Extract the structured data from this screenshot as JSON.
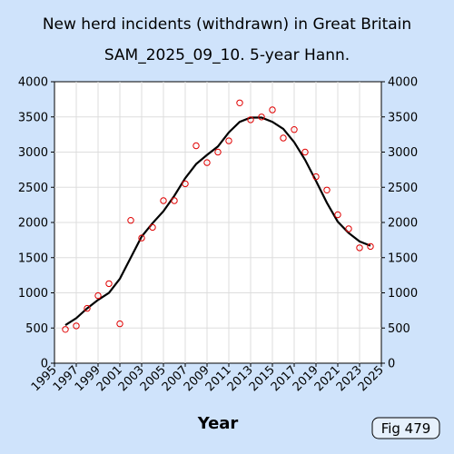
{
  "chart_data": {
    "type": "scatter",
    "title": "New herd incidents (withdrawn) in Great Britain",
    "subtitle": "SAM_2025_09_10. 5-year Hann.",
    "xlabel": "Year",
    "ylabel": "",
    "xlim": [
      1995,
      2025
    ],
    "ylim": [
      0,
      4000
    ],
    "x_ticks": [
      "1995",
      "1997",
      "1999",
      "2001",
      "2003",
      "2005",
      "2007",
      "2009",
      "2011",
      "2013",
      "2015",
      "2017",
      "2019",
      "2021",
      "2023",
      "2025"
    ],
    "y_ticks": [
      "0",
      "500",
      "1000",
      "1500",
      "2000",
      "2500",
      "3000",
      "3500",
      "4000"
    ],
    "grid": true,
    "series": [
      {
        "kind": "points",
        "color": "#e00000",
        "x": [
          1996,
          1997,
          1998,
          1999,
          2000,
          2001,
          2002,
          2003,
          2004,
          2005,
          2006,
          2007,
          2008,
          2009,
          2010,
          2011,
          2012,
          2013,
          2014,
          2015,
          2016,
          2017,
          2018,
          2019,
          2020,
          2021,
          2022,
          2023,
          2024
        ],
        "y": [
          480,
          530,
          780,
          960,
          1130,
          560,
          2030,
          1780,
          1930,
          2310,
          2310,
          2550,
          3090,
          2850,
          3000,
          3160,
          3700,
          3460,
          3500,
          3600,
          3200,
          3320,
          3000,
          2650,
          2460,
          2110,
          1910,
          1640,
          1660
        ]
      },
      {
        "kind": "line",
        "color": "#000000",
        "x": [
          1996,
          1997,
          1998,
          1999,
          2000,
          2001,
          2002,
          2003,
          2004,
          2005,
          2006,
          2007,
          2008,
          2009,
          2010,
          2011,
          2012,
          2013,
          2014,
          2015,
          2016,
          2017,
          2018,
          2019,
          2020,
          2021,
          2022,
          2023,
          2024
        ],
        "y": [
          540,
          640,
          780,
          900,
          1000,
          1200,
          1500,
          1800,
          1990,
          2160,
          2380,
          2630,
          2830,
          2960,
          3080,
          3280,
          3430,
          3490,
          3490,
          3430,
          3330,
          3140,
          2890,
          2590,
          2280,
          2010,
          1850,
          1730,
          1670
        ]
      }
    ]
  },
  "figure_label": "Fig 479"
}
